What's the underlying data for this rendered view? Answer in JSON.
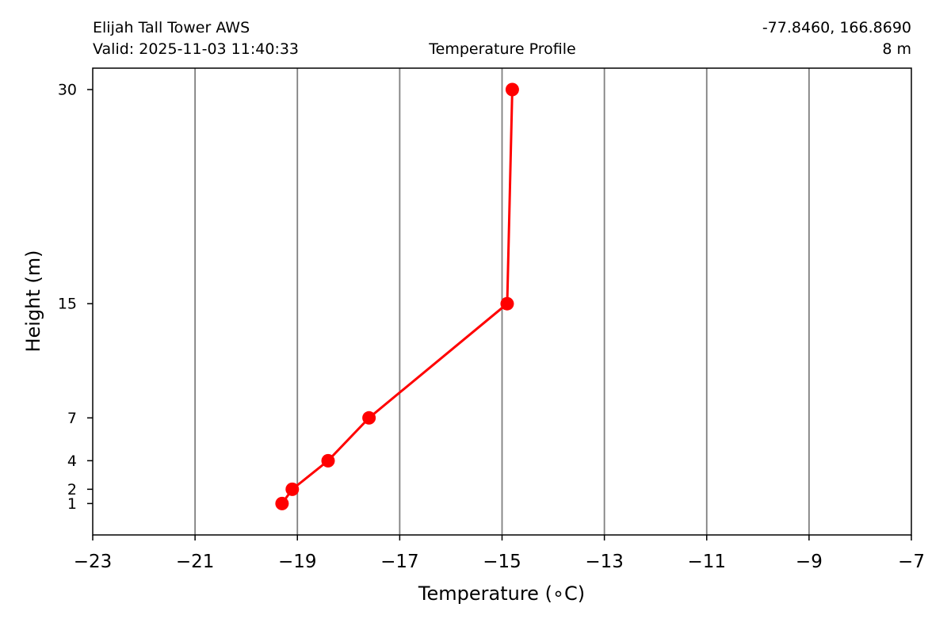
{
  "header": {
    "station": "Elijah Tall Tower AWS",
    "valid": "Valid: 2025-11-03 11:40:33",
    "title": "Temperature Profile",
    "coords": "-77.8460, 166.8690",
    "height": "8 m"
  },
  "chart_data": {
    "type": "line",
    "title": "Temperature Profile",
    "xlabel": "Temperature (∘C)",
    "ylabel": "Height (m)",
    "xlim": [
      -23,
      -7
    ],
    "ylim": [
      -1.2,
      31.5
    ],
    "xticks": [
      -23,
      -21,
      -19,
      -17,
      -15,
      -13,
      -11,
      -9,
      -7
    ],
    "xtick_labels": [
      "−23",
      "−21",
      "−19",
      "−17",
      "−15",
      "−13",
      "−11",
      "−9",
      "−7"
    ],
    "yticks": [
      1,
      2,
      4,
      7,
      15,
      30
    ],
    "ytick_labels": [
      "1",
      "2",
      "4",
      "7",
      "15",
      "30"
    ],
    "grid": "vertical",
    "series": [
      {
        "color": "#ff0000",
        "x": [
          -19.3,
          -19.1,
          -18.4,
          -17.6,
          -14.9,
          -14.8
        ],
        "y": [
          1,
          2,
          4,
          7,
          15,
          30
        ]
      }
    ]
  }
}
